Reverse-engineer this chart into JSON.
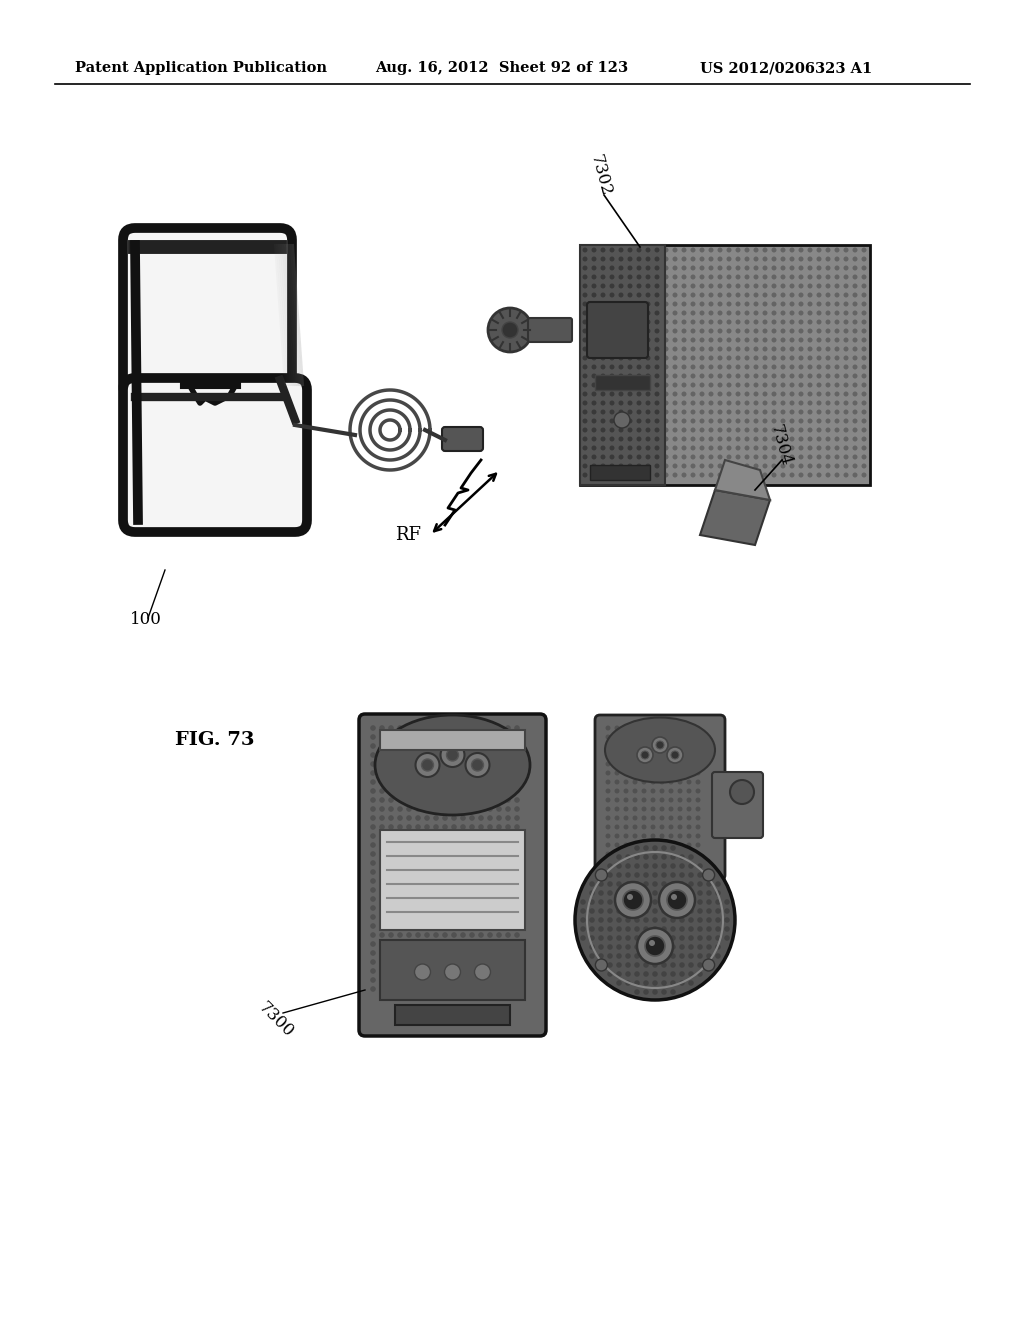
{
  "header_left": "Patent Application Publication",
  "header_mid": "Aug. 16, 2012  Sheet 92 of 123",
  "header_right": "US 2012/0206323 A1",
  "fig_label": "FIG. 73",
  "label_100": "100",
  "label_7300": "7300",
  "label_7302": "7302",
  "label_7304": "7304",
  "rf_label": "RF",
  "bg_color": "#ffffff",
  "text_color": "#000000",
  "header_fontsize": 10.5,
  "label_fontsize": 12
}
